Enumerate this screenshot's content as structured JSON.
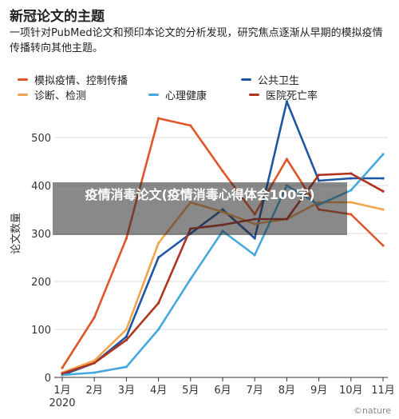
{
  "header": {
    "title": "新冠论文的主题",
    "subtitle": "一项针对PubMed论文和预印本论文的分析发现，研究焦点逐渐从早期的模拟疫情传播转向其他主题。"
  },
  "overlay": {
    "text": "疫情消毒论文(疫情消毒心得体会100字)"
  },
  "watermark": "©nature",
  "chart_data": {
    "type": "line",
    "title": "",
    "xlabel": "",
    "ylabel": "论文数量",
    "year_label": "2020",
    "ylim": [
      0,
      600
    ],
    "yticks": [
      0,
      100,
      200,
      300,
      400,
      500
    ],
    "grid": true,
    "legend_position": "top",
    "categories": [
      "1月",
      "2月",
      "3月",
      "4月",
      "5月",
      "6月",
      "7月",
      "8月",
      "9月",
      "10月",
      "11月"
    ],
    "series": [
      {
        "name": "模拟疫情、控制传播",
        "color": "#e0562a",
        "values": [
          20,
          125,
          290,
          540,
          525,
          430,
          340,
          455,
          350,
          340,
          275
        ]
      },
      {
        "name": "公共卫生",
        "color": "#1f56a4",
        "values": [
          5,
          30,
          85,
          250,
          300,
          350,
          290,
          575,
          410,
          415,
          415
        ]
      },
      {
        "name": "诊断、检测",
        "color": "#f2a54f",
        "values": [
          10,
          35,
          100,
          280,
          365,
          345,
          320,
          330,
          365,
          365,
          350
        ]
      },
      {
        "name": "心理健康",
        "color": "#45a9e0",
        "values": [
          5,
          10,
          22,
          100,
          205,
          305,
          255,
          400,
          360,
          390,
          465
        ]
      },
      {
        "name": "医院死亡率",
        "color": "#b0341e",
        "values": [
          8,
          30,
          78,
          155,
          310,
          318,
          330,
          330,
          422,
          425,
          388
        ]
      }
    ]
  }
}
